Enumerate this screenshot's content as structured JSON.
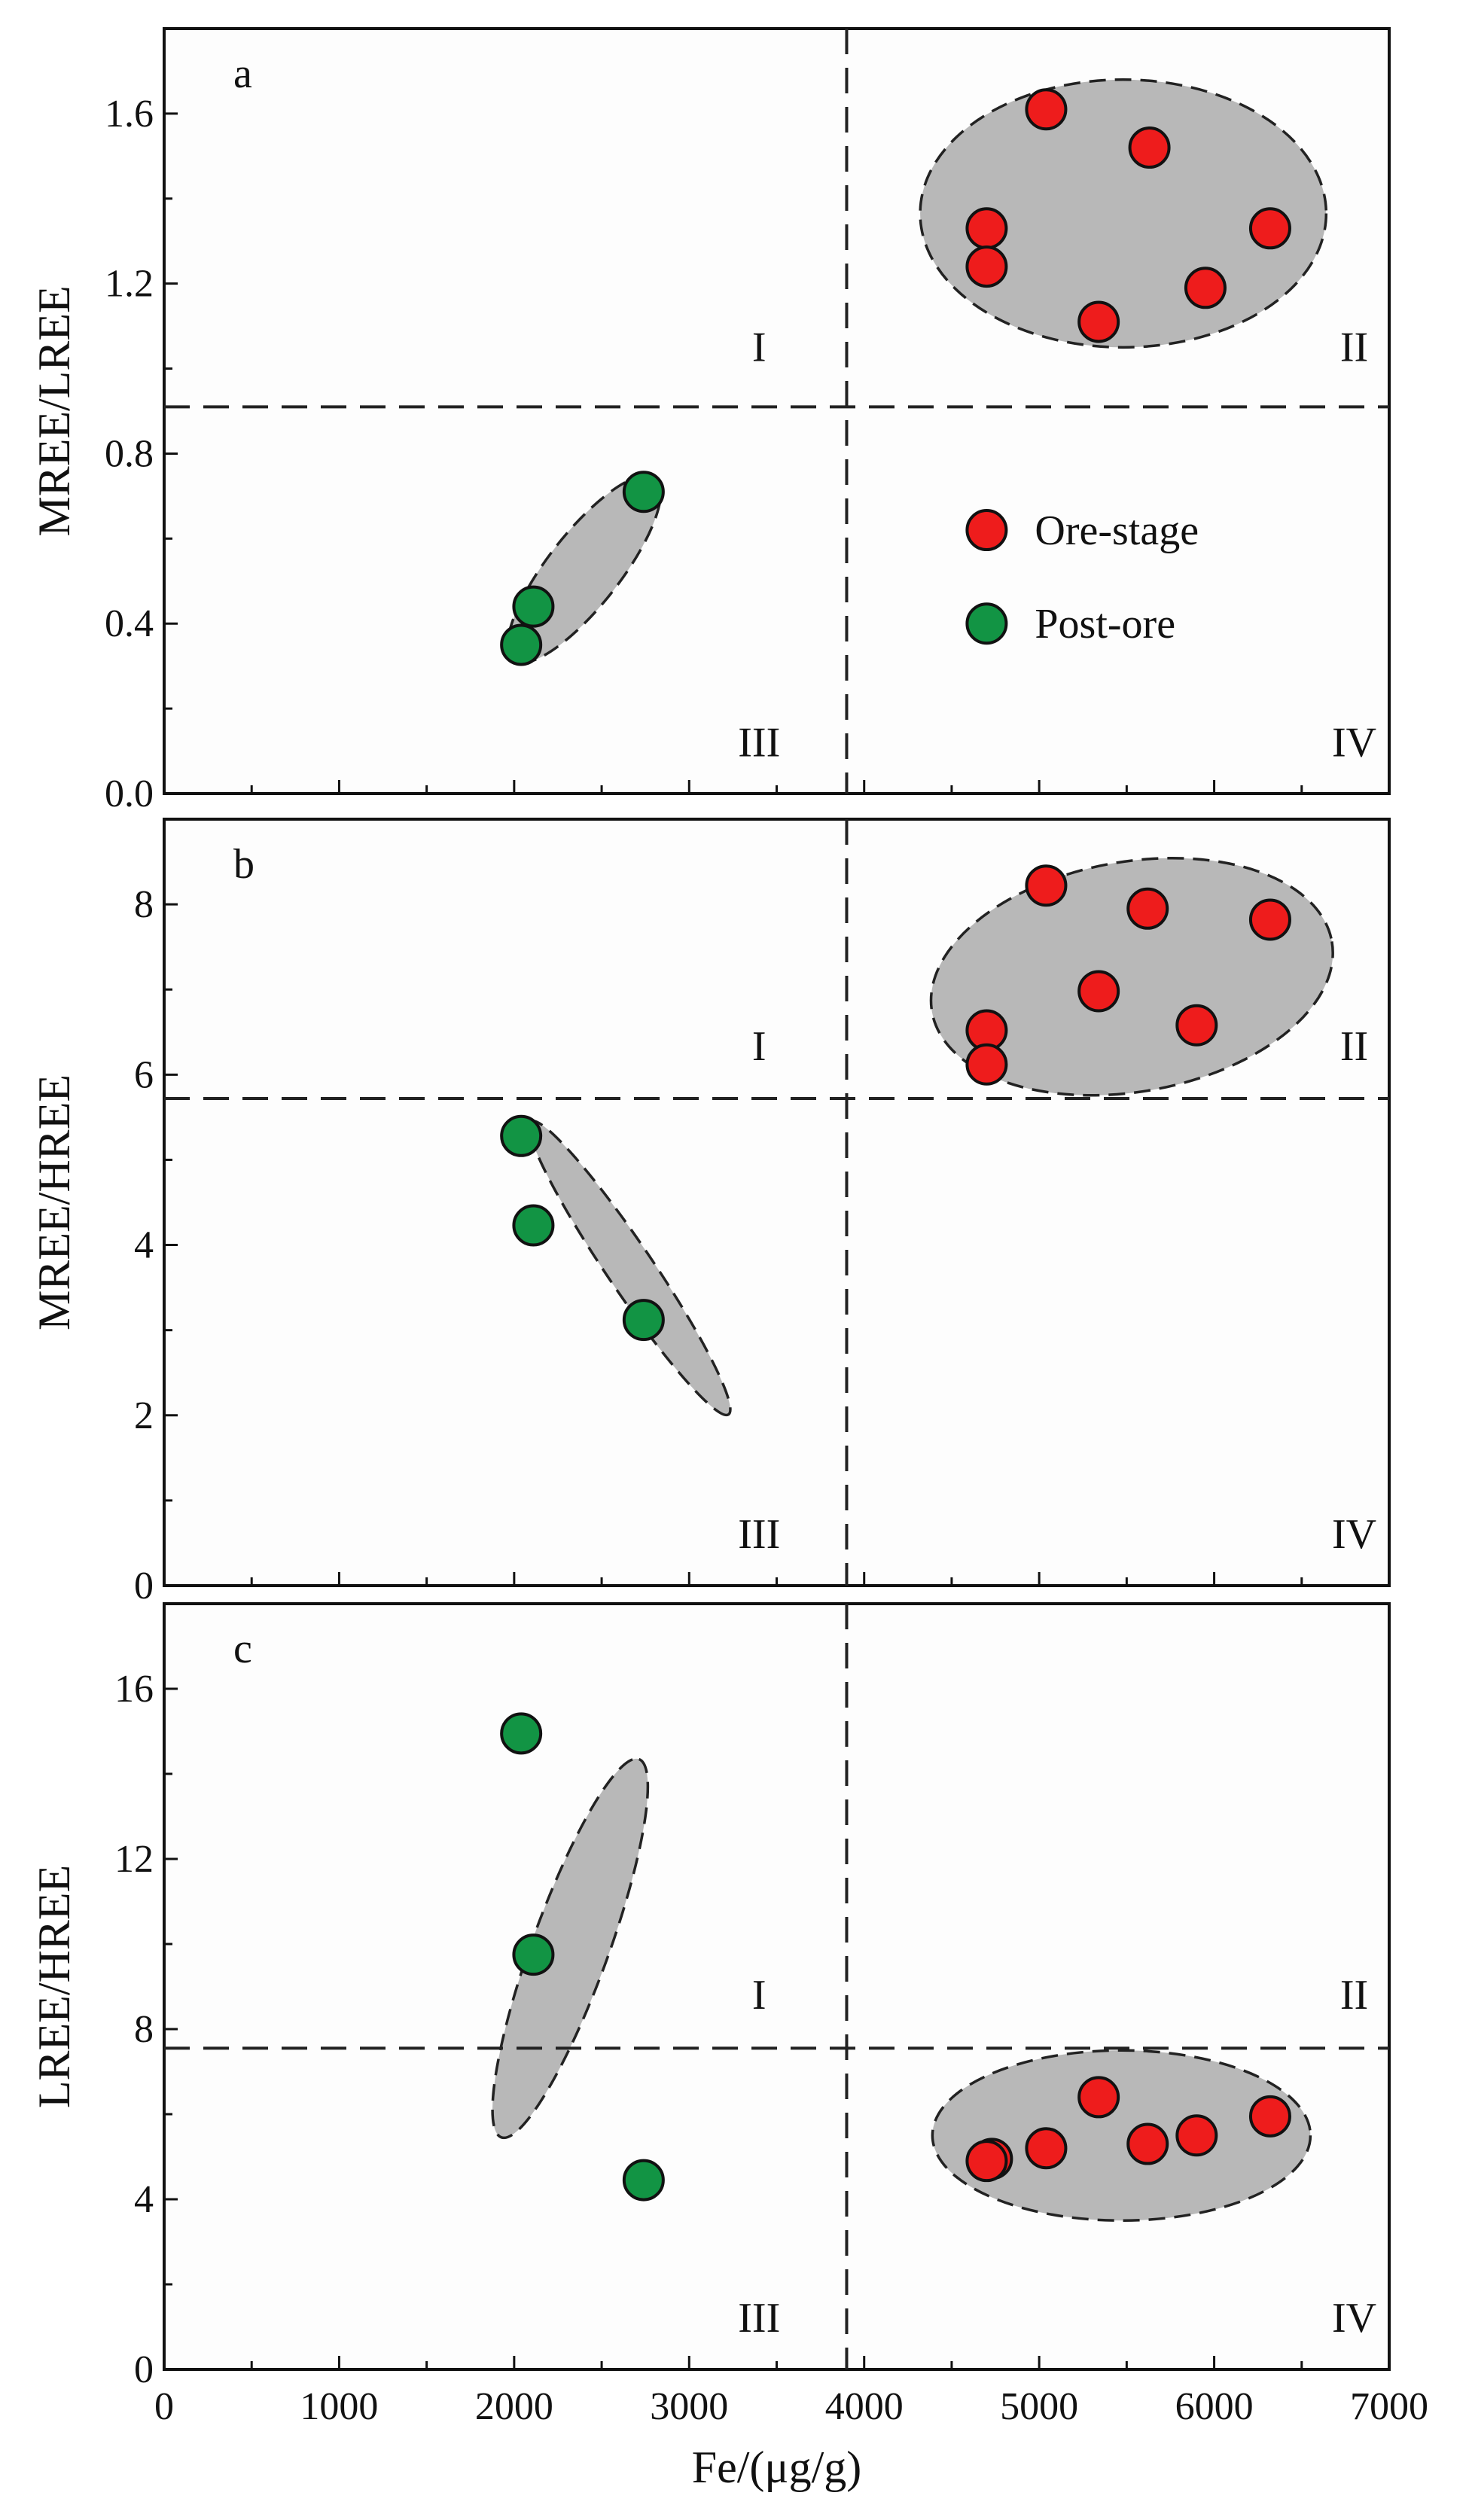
{
  "chart_data": [
    {
      "type": "scatter",
      "panel_label": "a",
      "xlabel": "Fe/(μg/g)",
      "ylabel": "MREE/LREE",
      "xlim": [
        0,
        7000
      ],
      "ylim": [
        0,
        1.8
      ],
      "yticks": [
        0.0,
        0.4,
        0.8,
        1.2,
        1.6
      ],
      "ytick_labels": [
        "0.0",
        "0.4",
        "0.8",
        "1.2",
        "1.6"
      ],
      "x_divider": 3900,
      "y_divider": 0.91,
      "quadrant_labels": [
        {
          "text": "I",
          "at": [
            3400,
            1.05
          ]
        },
        {
          "text": "II",
          "at": [
            6800,
            1.05
          ]
        },
        {
          "text": "III",
          "at": [
            3400,
            0.12
          ]
        },
        {
          "text": "IV",
          "at": [
            6800,
            0.12
          ]
        }
      ],
      "series": [
        {
          "name": "Ore-stage",
          "color": "#ee1c1c",
          "points": [
            [
              5040,
              1.61
            ],
            [
              5630,
              1.52
            ],
            [
              4700,
              1.33
            ],
            [
              6320,
              1.33
            ],
            [
              4700,
              1.24
            ],
            [
              5950,
              1.19
            ],
            [
              5340,
              1.11
            ]
          ]
        },
        {
          "name": "Post-ore",
          "color": "#129444",
          "points": [
            [
              2740,
              0.71
            ],
            [
              2110,
              0.44
            ],
            [
              2040,
              0.35
            ]
          ]
        }
      ],
      "envelopes": [
        {
          "cx": 5480,
          "cy": 1.365,
          "rx": 1160,
          "ry": 0.315,
          "rot": 0
        },
        {
          "cx": 2400,
          "cy": 0.528,
          "rx": 660,
          "ry": 0.085,
          "rot": -52
        }
      ],
      "legend": {
        "position": "center-right",
        "entries": [
          "Ore-stage",
          "Post-ore"
        ]
      }
    },
    {
      "type": "scatter",
      "panel_label": "b",
      "xlabel": "Fe/(μg/g)",
      "ylabel": "MREE/HREE",
      "xlim": [
        0,
        7000
      ],
      "ylim": [
        0,
        9
      ],
      "yticks": [
        0,
        2,
        4,
        6,
        8
      ],
      "ytick_labels": [
        "0",
        "2",
        "4",
        "6",
        "8"
      ],
      "x_divider": 3900,
      "y_divider": 5.72,
      "quadrant_labels": [
        {
          "text": "I",
          "at": [
            3400,
            6.33
          ]
        },
        {
          "text": "II",
          "at": [
            6800,
            6.33
          ]
        },
        {
          "text": "III",
          "at": [
            3400,
            0.6
          ]
        },
        {
          "text": "IV",
          "at": [
            6800,
            0.6
          ]
        }
      ],
      "series": [
        {
          "name": "Ore-stage",
          "color": "#ee1c1c",
          "points": [
            [
              5040,
              8.22
            ],
            [
              5620,
              7.95
            ],
            [
              6320,
              7.82
            ],
            [
              5340,
              6.98
            ],
            [
              5900,
              6.58
            ],
            [
              4700,
              6.52
            ],
            [
              4700,
              6.12
            ]
          ]
        },
        {
          "name": "Post-ore",
          "color": "#129444",
          "points": [
            [
              2040,
              5.28
            ],
            [
              2110,
              4.23
            ],
            [
              2740,
              3.12
            ]
          ]
        }
      ],
      "envelopes": [
        {
          "cx": 5530,
          "cy": 7.15,
          "rx": 1160,
          "ry": 1.35,
          "rot": -10
        },
        {
          "cx": 2660,
          "cy": 3.73,
          "rx": 1010,
          "ry": 0.27,
          "rot": 56
        }
      ]
    },
    {
      "type": "scatter",
      "panel_label": "c",
      "xlabel": "Fe/(μg/g)",
      "ylabel": "LREE/HREE",
      "xlim": [
        0,
        7000
      ],
      "ylim": [
        0,
        18
      ],
      "yticks": [
        0,
        4,
        8,
        12,
        16
      ],
      "ytick_labels": [
        "0",
        "4",
        "8",
        "12",
        "16"
      ],
      "xticks": [
        0,
        1000,
        2000,
        3000,
        4000,
        5000,
        6000,
        7000
      ],
      "xtick_labels": [
        "0",
        "1000",
        "2000",
        "3000",
        "4000",
        "5000",
        "6000",
        "7000"
      ],
      "x_divider": 3900,
      "y_divider": 7.55,
      "quadrant_labels": [
        {
          "text": "I",
          "at": [
            3400,
            8.8
          ]
        },
        {
          "text": "II",
          "at": [
            6800,
            8.8
          ]
        },
        {
          "text": "III",
          "at": [
            3400,
            1.2
          ]
        },
        {
          "text": "IV",
          "at": [
            6800,
            1.2
          ]
        }
      ],
      "series": [
        {
          "name": "Ore-stage",
          "color": "#ee1c1c",
          "points": [
            [
              5340,
              6.4
            ],
            [
              6320,
              5.95
            ],
            [
              5900,
              5.5
            ],
            [
              5620,
              5.3
            ],
            [
              5040,
              5.2
            ],
            [
              4730,
              4.95
            ],
            [
              4700,
              4.9
            ]
          ]
        },
        {
          "name": "Post-ore",
          "color": "#129444",
          "points": [
            [
              2040,
              14.95
            ],
            [
              2110,
              9.75
            ],
            [
              2740,
              4.45
            ]
          ]
        }
      ],
      "envelopes": [
        {
          "cx": 5470,
          "cy": 5.5,
          "rx": 1080,
          "ry": 2.0,
          "rot": 0
        },
        {
          "cx": 2320,
          "cy": 9.9,
          "rx": 1150,
          "ry": 0.9,
          "rot": -70
        }
      ]
    }
  ]
}
